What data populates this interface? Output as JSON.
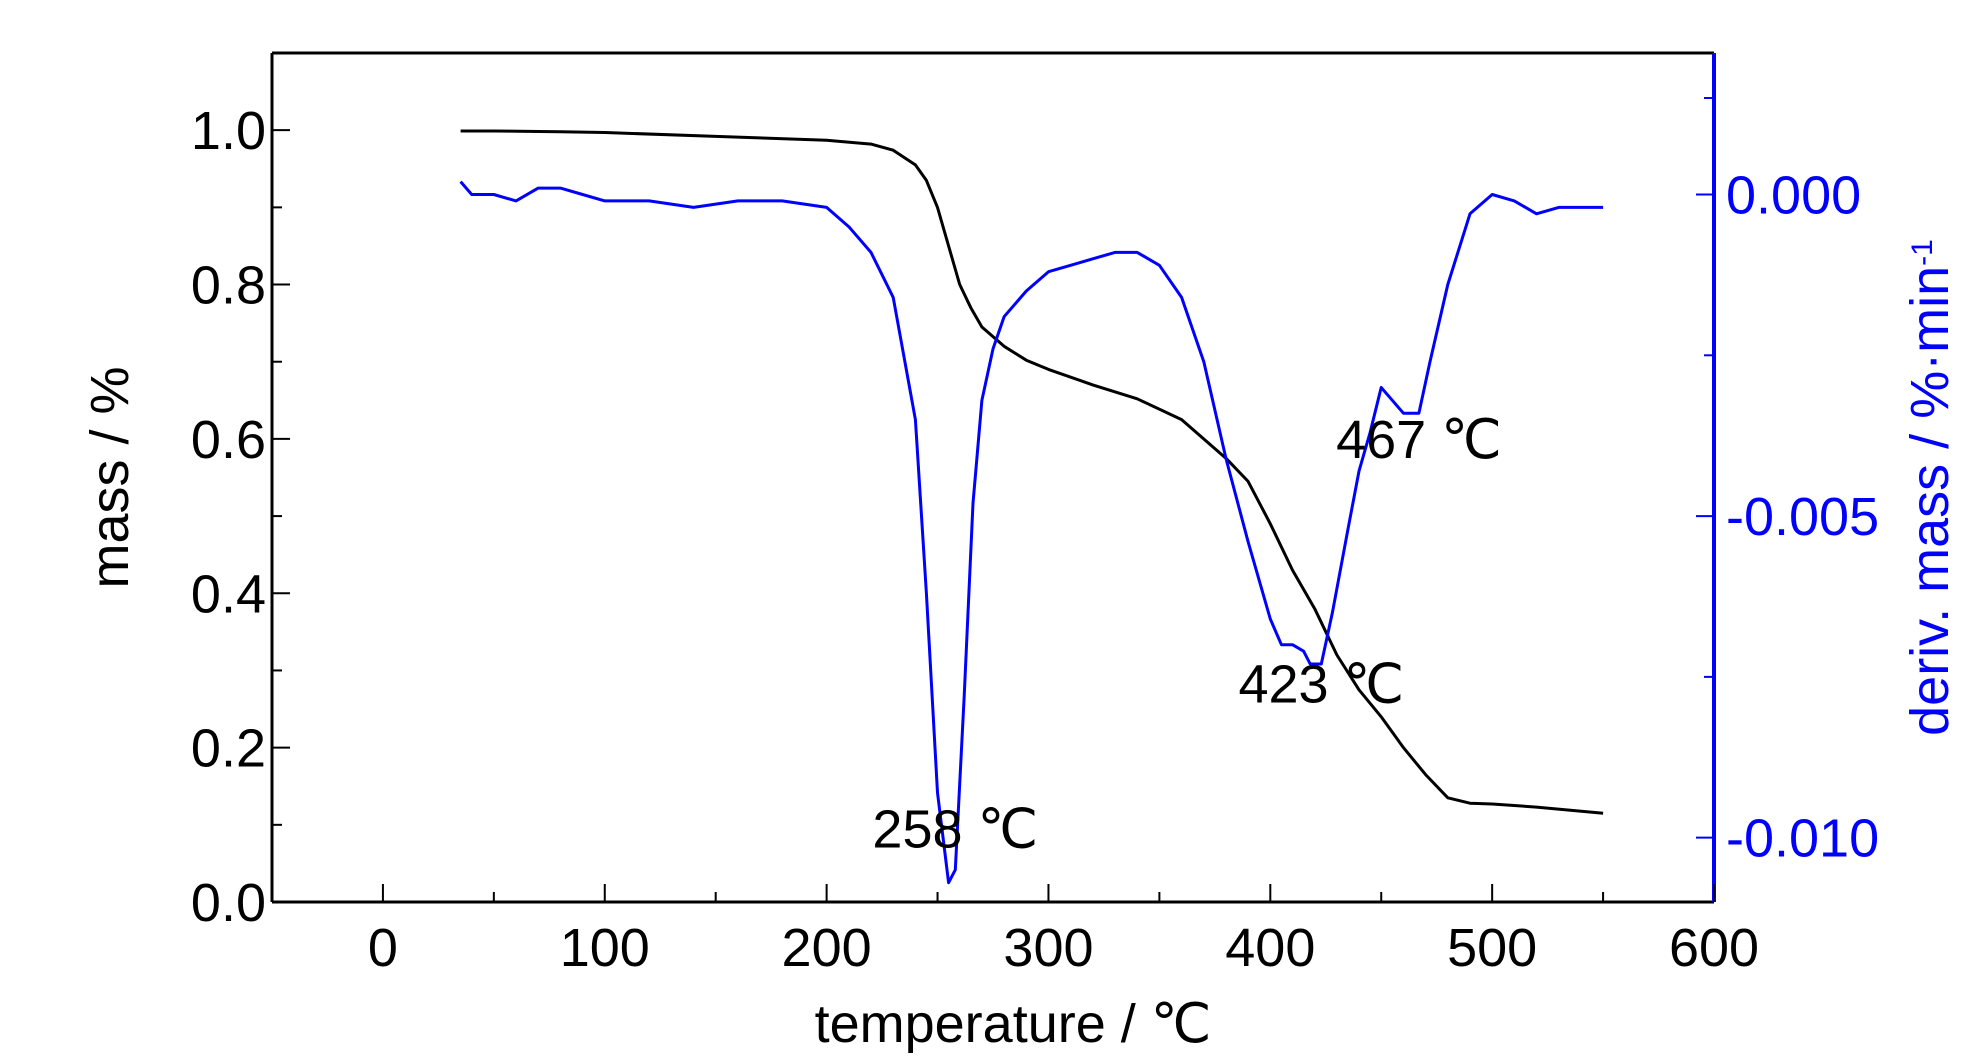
{
  "chart_data": {
    "type": "line",
    "title": "",
    "xlabel": "temperature / ℃",
    "ylabel_left": "mass / %",
    "ylabel_right": "deriv. mass / %·min",
    "ylabel_right_sup": "-1",
    "xlim": [
      -50,
      600
    ],
    "ylim_left": [
      0.0,
      1.1
    ],
    "ylim_right": [
      -0.011,
      0.0022
    ],
    "x_ticks": [
      0,
      100,
      200,
      300,
      400,
      500,
      600
    ],
    "y_left_ticks": [
      "0.0",
      "0.2",
      "0.4",
      "0.6",
      "0.8",
      "1.0"
    ],
    "y_right_ticks": [
      "0.000",
      "-0.005",
      "-0.010"
    ],
    "colors": {
      "mass": "#000000",
      "deriv": "#0000ff",
      "axis_right": "#0000ff"
    },
    "series": [
      {
        "axis": "left",
        "x": [
          35,
          50,
          80,
          100,
          150,
          200,
          220,
          230,
          240,
          245,
          250,
          255,
          260,
          265,
          270,
          280,
          290,
          300,
          320,
          340,
          360,
          380,
          390,
          400,
          410,
          420,
          430,
          440,
          450,
          460,
          470,
          480,
          490,
          500,
          520,
          550
        ],
        "y": [
          0.999,
          0.999,
          0.998,
          0.997,
          0.992,
          0.987,
          0.982,
          0.974,
          0.955,
          0.935,
          0.9,
          0.85,
          0.8,
          0.77,
          0.745,
          0.72,
          0.702,
          0.69,
          0.67,
          0.652,
          0.625,
          0.575,
          0.545,
          0.49,
          0.43,
          0.38,
          0.32,
          0.275,
          0.24,
          0.2,
          0.165,
          0.135,
          0.128,
          0.127,
          0.123,
          0.115
        ]
      },
      {
        "axis": "right",
        "x": [
          35,
          40,
          50,
          60,
          70,
          80,
          90,
          100,
          120,
          140,
          160,
          180,
          200,
          210,
          220,
          230,
          240,
          245,
          250,
          255,
          258,
          262,
          266,
          270,
          275,
          280,
          290,
          300,
          310,
          320,
          330,
          340,
          350,
          360,
          370,
          380,
          390,
          400,
          405,
          410,
          415,
          418,
          423,
          428,
          435,
          440,
          445,
          450,
          455,
          460,
          467,
          472,
          480,
          490,
          500,
          510,
          520,
          530,
          540,
          550
        ],
        "y": [
          0.0002,
          0.0,
          0.0,
          -0.0001,
          0.0001,
          0.0001,
          0.0,
          -0.0001,
          -0.0001,
          -0.0002,
          -0.0001,
          -0.0001,
          -0.0002,
          -0.0005,
          -0.0009,
          -0.0016,
          -0.0035,
          -0.0062,
          -0.0093,
          -0.0107,
          -0.0105,
          -0.0078,
          -0.0048,
          -0.0032,
          -0.0024,
          -0.0019,
          -0.0015,
          -0.0012,
          -0.0011,
          -0.001,
          -0.0009,
          -0.0009,
          -0.0011,
          -0.0016,
          -0.0026,
          -0.0041,
          -0.0054,
          -0.0066,
          -0.007,
          -0.007,
          -0.0071,
          -0.0073,
          -0.0073,
          -0.0065,
          -0.0052,
          -0.0043,
          -0.0037,
          -0.003,
          -0.0032,
          -0.0034,
          -0.0034,
          -0.0026,
          -0.0014,
          -0.0003,
          0.0,
          -0.0001,
          -0.0003,
          -0.0002,
          -0.0002,
          -0.0002
        ]
      }
    ],
    "annotations": [
      {
        "text": "258 ℃",
        "x": 258,
        "y_right": -0.01015
      },
      {
        "text": "423 ℃",
        "x": 423,
        "y_right": -0.0079
      },
      {
        "text": "467 ℃",
        "x": 467,
        "y_right": -0.0041
      }
    ],
    "grid": false,
    "legend": "none"
  }
}
